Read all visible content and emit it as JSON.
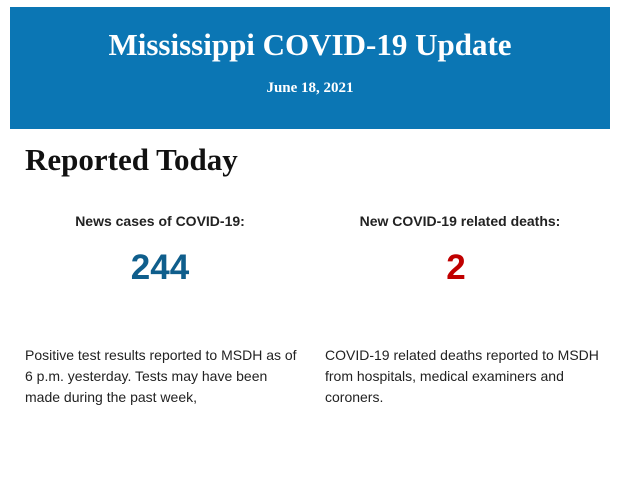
{
  "header": {
    "title": "Mississippi COVID-19 Update",
    "date": "June 18, 2021"
  },
  "section": {
    "heading": "Reported Today",
    "stats": [
      {
        "label": "News cases of COVID-19:",
        "value": 244,
        "description": "Positive test results reported to MSDH as of 6 p.m. yesterday. Tests may have been made during the past week,"
      },
      {
        "label": "New COVID-19 related deaths:",
        "value": 2,
        "description": "COVID-19 related deaths reported to MSDH from hospitals, medical examiners and coroners."
      }
    ]
  }
}
